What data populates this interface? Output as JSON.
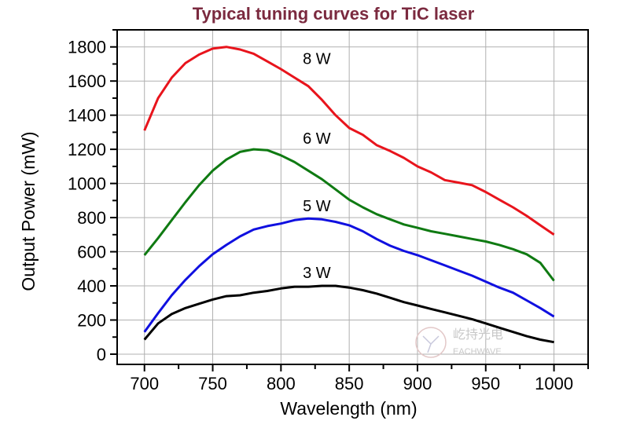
{
  "chart_data": {
    "type": "line",
    "title": "Typical tuning curves for TiC laser",
    "xlabel": "Wavelength (nm)",
    "ylabel": "Output Power (mW)",
    "xlim": [
      680,
      1025
    ],
    "ylim": [
      -60,
      1900
    ],
    "xticks": [
      700,
      750,
      800,
      850,
      900,
      950,
      1000
    ],
    "yticks": [
      0,
      200,
      400,
      600,
      800,
      1000,
      1200,
      1400,
      1600,
      1800
    ],
    "grid": true,
    "x": [
      700,
      710,
      720,
      730,
      740,
      750,
      760,
      770,
      780,
      790,
      800,
      810,
      820,
      830,
      840,
      850,
      860,
      870,
      880,
      890,
      900,
      910,
      920,
      930,
      940,
      950,
      960,
      970,
      980,
      990,
      1000
    ],
    "series": [
      {
        "name": "8 W",
        "color": "#e8141c",
        "label_at": [
          816,
          1700
        ],
        "values": [
          1310,
          1500,
          1620,
          1705,
          1755,
          1790,
          1800,
          1785,
          1760,
          1715,
          1670,
          1620,
          1570,
          1490,
          1400,
          1325,
          1285,
          1225,
          1190,
          1150,
          1100,
          1065,
          1020,
          1005,
          990,
          950,
          905,
          860,
          810,
          755,
          700
        ]
      },
      {
        "name": "6 W",
        "color": "#0f7a12",
        "label_at": [
          816,
          1232
        ],
        "values": [
          580,
          680,
          785,
          890,
          990,
          1075,
          1140,
          1185,
          1200,
          1195,
          1165,
          1125,
          1075,
          1025,
          965,
          905,
          860,
          820,
          790,
          760,
          740,
          720,
          705,
          690,
          675,
          660,
          640,
          615,
          585,
          535,
          430
        ]
      },
      {
        "name": "5 W",
        "color": "#1010e0",
        "label_at": [
          816,
          838
        ],
        "values": [
          130,
          240,
          345,
          435,
          515,
          585,
          640,
          690,
          730,
          750,
          765,
          785,
          795,
          790,
          775,
          755,
          720,
          675,
          635,
          605,
          580,
          550,
          520,
          490,
          460,
          425,
          390,
          360,
          315,
          270,
          220
        ]
      },
      {
        "name": "3 W",
        "color": "#000000",
        "label_at": [
          816,
          445
        ],
        "values": [
          85,
          180,
          235,
          270,
          295,
          320,
          340,
          345,
          360,
          370,
          385,
          395,
          395,
          400,
          400,
          390,
          375,
          355,
          330,
          305,
          285,
          265,
          245,
          225,
          205,
          180,
          155,
          130,
          105,
          85,
          70
        ]
      }
    ],
    "colors": {
      "title": "#7b2a3f",
      "grid": "#b0b0b0"
    }
  },
  "watermark": {
    "text_cn": "屹持光电",
    "text_en": "EACHWAVE"
  }
}
